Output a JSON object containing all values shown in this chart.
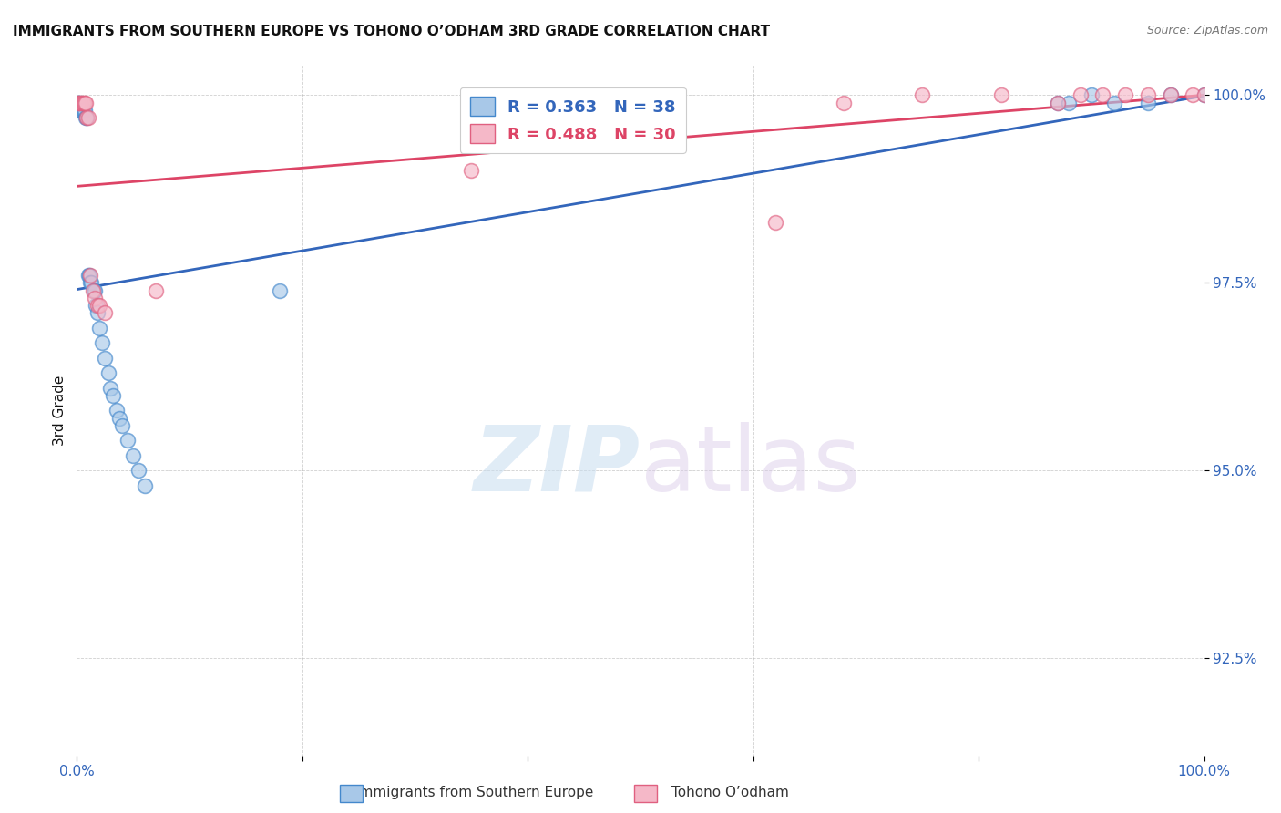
{
  "title": "IMMIGRANTS FROM SOUTHERN EUROPE VS TOHONO O’ODHAM 3RD GRADE CORRELATION CHART",
  "source": "Source: ZipAtlas.com",
  "ylabel": "3rd Grade",
  "watermark_zip": "ZIP",
  "watermark_atlas": "atlas",
  "xlim": [
    0.0,
    1.0
  ],
  "ylim": [
    0.912,
    1.004
  ],
  "yticks": [
    0.925,
    0.95,
    0.975,
    1.0
  ],
  "ytick_labels": [
    "92.5%",
    "95.0%",
    "97.5%",
    "100.0%"
  ],
  "xticks": [
    0.0,
    0.2,
    0.4,
    0.6,
    0.8,
    1.0
  ],
  "xtick_labels": [
    "0.0%",
    "",
    "",
    "",
    "",
    "100.0%"
  ],
  "blue_R": 0.363,
  "blue_N": 38,
  "pink_R": 0.488,
  "pink_N": 30,
  "blue_fill": "#a8c8e8",
  "pink_fill": "#f5b8c8",
  "blue_edge": "#4488cc",
  "pink_edge": "#e06080",
  "blue_line": "#3366bb",
  "pink_line": "#dd4466",
  "legend_blue_label": "Immigrants from Southern Europe",
  "legend_pink_label": "Tohono O’odham",
  "blue_x": [
    0.001,
    0.002,
    0.003,
    0.004,
    0.005,
    0.006,
    0.007,
    0.008,
    0.009,
    0.01,
    0.011,
    0.012,
    0.013,
    0.015,
    0.016,
    0.017,
    0.018,
    0.02,
    0.022,
    0.025,
    0.028,
    0.03,
    0.032,
    0.035,
    0.038,
    0.04,
    0.045,
    0.05,
    0.055,
    0.06,
    0.18,
    0.87,
    0.88,
    0.9,
    0.92,
    0.95,
    0.97,
    1.0
  ],
  "blue_y": [
    0.999,
    0.999,
    0.998,
    0.998,
    0.998,
    0.998,
    0.998,
    0.997,
    0.997,
    0.976,
    0.976,
    0.975,
    0.975,
    0.974,
    0.974,
    0.972,
    0.971,
    0.969,
    0.967,
    0.965,
    0.963,
    0.961,
    0.96,
    0.958,
    0.957,
    0.956,
    0.954,
    0.952,
    0.95,
    0.948,
    0.974,
    0.999,
    0.999,
    1.0,
    0.999,
    0.999,
    1.0,
    1.0
  ],
  "pink_x": [
    0.001,
    0.002,
    0.003,
    0.004,
    0.005,
    0.006,
    0.007,
    0.008,
    0.009,
    0.01,
    0.012,
    0.014,
    0.016,
    0.018,
    0.02,
    0.025,
    0.07,
    0.35,
    0.62,
    0.68,
    0.75,
    0.82,
    0.87,
    0.89,
    0.91,
    0.93,
    0.95,
    0.97,
    0.99,
    1.0
  ],
  "pink_y": [
    0.999,
    0.999,
    0.999,
    0.999,
    0.999,
    0.999,
    0.999,
    0.999,
    0.997,
    0.997,
    0.976,
    0.974,
    0.973,
    0.972,
    0.972,
    0.971,
    0.974,
    0.99,
    0.983,
    0.999,
    1.0,
    1.0,
    0.999,
    1.0,
    1.0,
    1.0,
    1.0,
    1.0,
    1.0,
    1.0
  ],
  "background_color": "#ffffff",
  "grid_color": "#bbbbbb",
  "axis_label_color": "#3366bb",
  "title_color": "#111111"
}
